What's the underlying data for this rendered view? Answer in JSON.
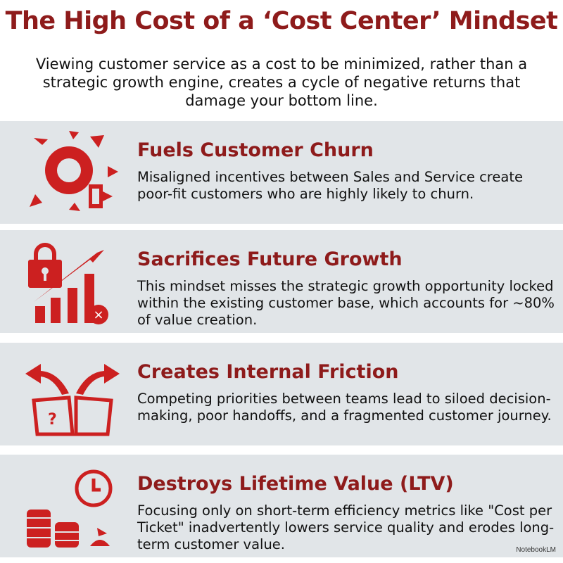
{
  "header": {
    "title": "The High Cost of a ‘Cost Center’ Mindset",
    "subtitle": "Viewing customer service as a cost to be minimized, rather than a strategic growth engine, creates a cycle of negative returns that damage your bottom line."
  },
  "colors": {
    "accent": "#8e1b1b",
    "icon_red": "#cc2020",
    "panel_bg": "#e1e5e8"
  },
  "items": [
    {
      "icon": "broken-gear-exit-icon",
      "heading": "Fuels Customer Churn",
      "body": "Misaligned incentives between Sales and Service create poor-fit customers who are highly likely to churn."
    },
    {
      "icon": "lock-growth-chart-icon",
      "heading": "Sacrifices Future Growth",
      "body": "This mindset misses the strategic growth opportunity locked within the existing customer base, which accounts for ~80% of value creation."
    },
    {
      "icon": "split-arrows-map-icon",
      "heading": "Creates Internal Friction",
      "body": "Competing priorities between teams lead to siloed decision-making, poor handoffs, and a fragmented customer journey."
    },
    {
      "icon": "clock-coins-icon",
      "heading": "Destroys Lifetime Value (LTV)",
      "body": "Focusing only on short-term efficiency metrics like \"Cost per Ticket\" inadvertently lowers service quality and erodes long-term customer value."
    }
  ],
  "footer": {
    "brand": "NotebookLM"
  }
}
